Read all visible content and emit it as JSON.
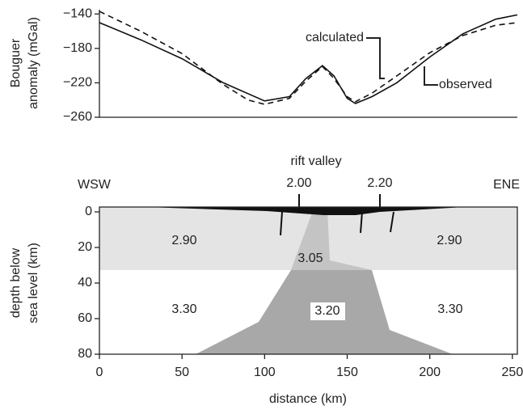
{
  "chart_data": [
    {
      "type": "line",
      "ylabel": [
        "Bouguer",
        "anomaly (mGal)"
      ],
      "xlim": [
        0,
        253
      ],
      "ylim": [
        -260,
        -135
      ],
      "yticks": [
        {
          "value": -140,
          "label": "−140"
        },
        {
          "value": -180,
          "label": "−180"
        },
        {
          "value": -220,
          "label": "−220"
        },
        {
          "value": -260,
          "label": "−260"
        }
      ],
      "series": [
        {
          "name": "observed",
          "color": "#111111",
          "dash": false,
          "x": [
            0,
            25,
            50,
            75,
            100,
            115,
            125,
            135,
            142,
            150,
            155,
            165,
            180,
            200,
            220,
            240,
            253
          ],
          "values": [
            -150,
            -170,
            -192,
            -220,
            -241,
            -236,
            -215,
            -200,
            -212,
            -238,
            -244,
            -236,
            -220,
            -190,
            -163,
            -146,
            -141
          ]
        },
        {
          "name": "calculated",
          "color": "#111111",
          "dash": true,
          "x": [
            0,
            25,
            50,
            75,
            90,
            100,
            115,
            125,
            135,
            142,
            150,
            155,
            165,
            180,
            200,
            220,
            240,
            253
          ],
          "values": [
            -137,
            -160,
            -186,
            -222,
            -240,
            -245,
            -238,
            -218,
            -201,
            -215,
            -236,
            -242,
            -232,
            -212,
            -185,
            -165,
            -153,
            -150
          ]
        }
      ]
    },
    {
      "type": "section",
      "title": "rift valley",
      "left_label": "WSW",
      "right_label": "ENE",
      "xlabel": "distance (km)",
      "ylabel": [
        "depth below",
        "sea level (km)"
      ],
      "xlim": [
        0,
        253
      ],
      "ylim": [
        0,
        80
      ],
      "xticks": [
        0,
        50,
        100,
        150,
        200,
        250
      ],
      "yticks": [
        0,
        20,
        40,
        60,
        80
      ],
      "sediment_labels": [
        "2.00",
        "2.20"
      ],
      "region_labels": [
        "2.90",
        "2.90",
        "3.05",
        "3.30",
        "3.30",
        "3.20"
      ]
    }
  ]
}
